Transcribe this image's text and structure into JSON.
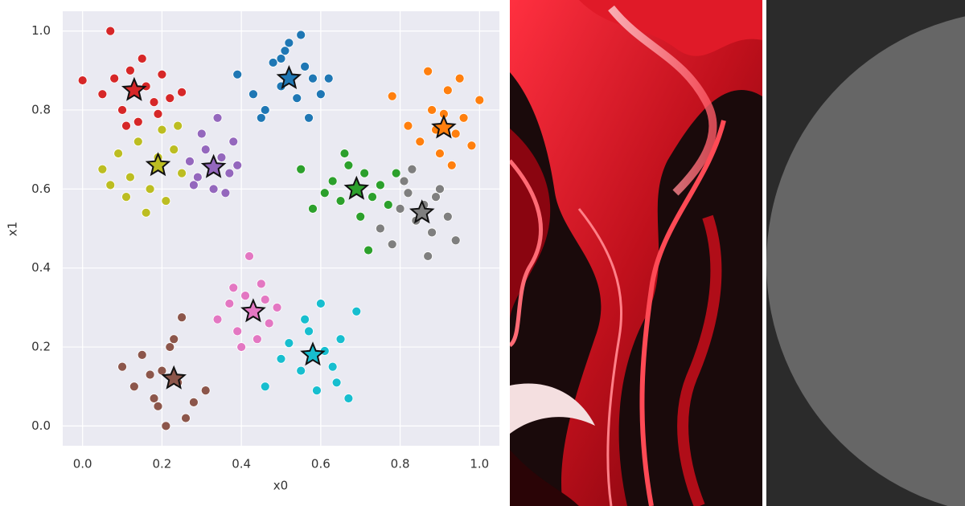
{
  "chart_data": {
    "type": "scatter",
    "xlabel": "x0",
    "ylabel": "x1",
    "xlim": [
      -0.05,
      1.05
    ],
    "ylim": [
      -0.05,
      1.05
    ],
    "xticks": [
      {
        "value": 0,
        "label": "0.0"
      },
      0.2,
      0.4,
      0.6,
      0.8,
      {
        "value": 1,
        "label": "1.0"
      }
    ],
    "yticks": [
      {
        "value": 0,
        "label": "0.0"
      },
      0.2,
      0.4,
      0.6,
      0.8,
      {
        "value": 1,
        "label": "1.0"
      }
    ],
    "grid": true,
    "series": [
      {
        "color": "#d62728",
        "x": [
          0.0,
          0.05,
          0.08,
          0.1,
          0.12,
          0.14,
          0.16,
          0.18,
          0.2,
          0.22,
          0.07,
          0.15,
          0.11,
          0.19,
          0.25
        ],
        "y": [
          0.875,
          0.84,
          0.88,
          0.8,
          0.9,
          0.77,
          0.86,
          0.82,
          0.89,
          0.83,
          1.0,
          0.93,
          0.76,
          0.79,
          0.845
        ]
      },
      {
        "color": "#1f77b4",
        "x": [
          0.39,
          0.43,
          0.46,
          0.48,
          0.5,
          0.52,
          0.54,
          0.56,
          0.58,
          0.6,
          0.62,
          0.45,
          0.55,
          0.5,
          0.57,
          0.51
        ],
        "y": [
          0.89,
          0.84,
          0.8,
          0.92,
          0.86,
          0.97,
          0.83,
          0.91,
          0.88,
          0.84,
          0.88,
          0.78,
          0.99,
          0.93,
          0.78,
          0.95
        ]
      },
      {
        "color": "#ff7f0e",
        "x": [
          0.78,
          0.82,
          0.85,
          0.88,
          0.9,
          0.92,
          0.94,
          0.96,
          0.98,
          1.0,
          0.87,
          0.93,
          0.91,
          0.95,
          0.89
        ],
        "y": [
          0.835,
          0.76,
          0.72,
          0.8,
          0.69,
          0.85,
          0.74,
          0.78,
          0.71,
          0.825,
          0.898,
          0.66,
          0.79,
          0.88,
          0.75
        ]
      },
      {
        "color": "#bcbd22",
        "x": [
          0.05,
          0.09,
          0.12,
          0.14,
          0.17,
          0.19,
          0.21,
          0.23,
          0.25,
          0.16,
          0.2,
          0.11,
          0.07,
          0.24
        ],
        "y": [
          0.65,
          0.69,
          0.63,
          0.72,
          0.6,
          0.68,
          0.57,
          0.7,
          0.64,
          0.54,
          0.75,
          0.58,
          0.61,
          0.76
        ]
      },
      {
        "color": "#9467bd",
        "x": [
          0.27,
          0.29,
          0.31,
          0.33,
          0.35,
          0.37,
          0.39,
          0.3,
          0.34,
          0.36,
          0.28,
          0.38
        ],
        "y": [
          0.67,
          0.63,
          0.7,
          0.6,
          0.68,
          0.64,
          0.66,
          0.74,
          0.78,
          0.59,
          0.61,
          0.72
        ]
      },
      {
        "color": "#2ca02c",
        "x": [
          0.55,
          0.58,
          0.61,
          0.63,
          0.65,
          0.67,
          0.69,
          0.71,
          0.73,
          0.75,
          0.77,
          0.79,
          0.72,
          0.66,
          0.7
        ],
        "y": [
          0.65,
          0.55,
          0.59,
          0.62,
          0.57,
          0.66,
          0.6,
          0.64,
          0.58,
          0.61,
          0.56,
          0.64,
          0.445,
          0.69,
          0.53
        ]
      },
      {
        "color": "#7f7f7f",
        "x": [
          0.75,
          0.78,
          0.8,
          0.82,
          0.84,
          0.86,
          0.88,
          0.9,
          0.92,
          0.94,
          0.83,
          0.87,
          0.81,
          0.89
        ],
        "y": [
          0.5,
          0.46,
          0.55,
          0.59,
          0.52,
          0.56,
          0.49,
          0.6,
          0.53,
          0.47,
          0.65,
          0.43,
          0.62,
          0.58
        ]
      },
      {
        "color": "#e377c2",
        "x": [
          0.34,
          0.37,
          0.39,
          0.41,
          0.43,
          0.45,
          0.47,
          0.49,
          0.42,
          0.4,
          0.44,
          0.38,
          0.46
        ],
        "y": [
          0.27,
          0.31,
          0.24,
          0.33,
          0.29,
          0.36,
          0.26,
          0.3,
          0.43,
          0.2,
          0.22,
          0.35,
          0.32
        ]
      },
      {
        "color": "#17becf",
        "x": [
          0.46,
          0.5,
          0.52,
          0.55,
          0.57,
          0.59,
          0.61,
          0.63,
          0.65,
          0.67,
          0.6,
          0.56,
          0.64,
          0.69
        ],
        "y": [
          0.1,
          0.17,
          0.21,
          0.14,
          0.24,
          0.09,
          0.19,
          0.15,
          0.22,
          0.07,
          0.31,
          0.27,
          0.11,
          0.29
        ]
      },
      {
        "color": "#8c564b",
        "x": [
          0.1,
          0.13,
          0.15,
          0.18,
          0.2,
          0.22,
          0.24,
          0.26,
          0.28,
          0.31,
          0.21,
          0.25,
          0.19,
          0.23,
          0.17
        ],
        "y": [
          0.15,
          0.1,
          0.18,
          0.07,
          0.14,
          0.2,
          0.11,
          0.02,
          0.06,
          0.09,
          0.0,
          0.275,
          0.05,
          0.22,
          0.13
        ]
      }
    ],
    "centroids": {
      "marker": "star",
      "x": [
        0.13,
        0.52,
        0.91,
        0.19,
        0.33,
        0.69,
        0.855,
        0.43,
        0.58,
        0.23
      ],
      "y": [
        0.85,
        0.88,
        0.755,
        0.66,
        0.655,
        0.6,
        0.54,
        0.29,
        0.18,
        0.12
      ]
    }
  }
}
